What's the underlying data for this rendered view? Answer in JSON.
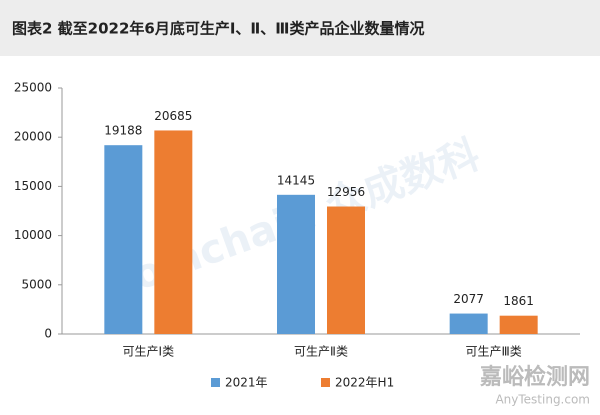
{
  "chart_data": {
    "type": "bar",
    "title": "图表2  截至2022年6月底可生产Ⅰ、Ⅱ、Ⅲ类产品企业数量情况",
    "categories": [
      "可生产Ⅰ类",
      "可生产Ⅱ类",
      "可生产Ⅲ类"
    ],
    "series": [
      {
        "name": "2021年",
        "color": "#5b9bd5",
        "values": [
          19188,
          14145,
          2077
        ]
      },
      {
        "name": "2022年H1",
        "color": "#ed7d31",
        "values": [
          20685,
          12956,
          1861
        ]
      }
    ],
    "ylim": [
      0,
      25000
    ],
    "yticks": [
      0,
      5000,
      10000,
      15000,
      20000,
      25000
    ],
    "legend": "bottom",
    "watermarks": [
      "Joinchain 众成数科",
      "嘉峪检测网",
      "AnyTesting.com"
    ]
  }
}
